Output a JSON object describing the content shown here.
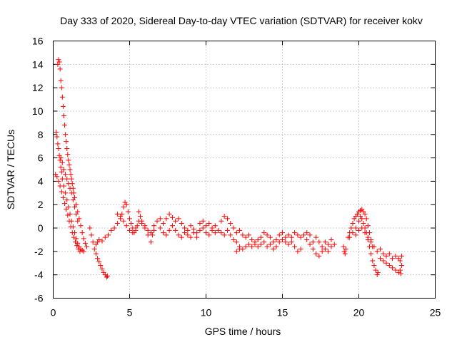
{
  "chart_data": {
    "type": "scatter",
    "title": "Day 333 of 2020, Sidereal Day-to-day VTEC variation (SDTVAR) for receiver kokv",
    "xlabel": "GPS time / hours",
    "ylabel": "SDTVAR / TECUs",
    "xlim": [
      0,
      25
    ],
    "ylim": [
      -6,
      16
    ],
    "xticks": [
      0,
      5,
      10,
      15,
      20,
      25
    ],
    "yticks": [
      -6,
      -4,
      -2,
      0,
      2,
      4,
      6,
      8,
      10,
      12,
      14,
      16
    ],
    "grid": true,
    "legend": "none",
    "marker": "+",
    "color": "#ff0000",
    "series": [
      {
        "name": "SDTVAR",
        "points": [
          [
            0.2,
            8.2
          ],
          [
            0.25,
            7.8
          ],
          [
            0.3,
            7.2
          ],
          [
            0.35,
            6.8
          ],
          [
            0.4,
            6.2
          ],
          [
            0.45,
            5.8
          ],
          [
            0.5,
            5.2
          ],
          [
            0.55,
            4.8
          ],
          [
            0.6,
            4.2
          ],
          [
            0.7,
            3.6
          ],
          [
            0.8,
            3.0
          ],
          [
            0.9,
            2.4
          ],
          [
            1.0,
            1.8
          ],
          [
            1.1,
            1.2
          ],
          [
            1.2,
            0.6
          ],
          [
            1.3,
            0.1
          ],
          [
            1.4,
            -0.4
          ],
          [
            1.5,
            -0.9
          ],
          [
            1.6,
            -1.3
          ],
          [
            1.7,
            -1.6
          ],
          [
            1.8,
            -1.8
          ],
          [
            1.9,
            -1.9
          ],
          [
            2.0,
            -2.0
          ],
          [
            0.15,
            4.6
          ],
          [
            0.25,
            4.4
          ],
          [
            0.35,
            4.0
          ],
          [
            0.45,
            3.6
          ],
          [
            0.55,
            3.1
          ],
          [
            0.65,
            2.6
          ],
          [
            0.75,
            2.1
          ],
          [
            0.85,
            1.6
          ],
          [
            0.95,
            1.1
          ],
          [
            1.05,
            0.6
          ],
          [
            1.15,
            0.1
          ],
          [
            1.25,
            -0.4
          ],
          [
            1.35,
            -0.8
          ],
          [
            1.45,
            -1.2
          ],
          [
            1.55,
            -1.5
          ],
          [
            1.65,
            -1.8
          ],
          [
            1.75,
            -2.0
          ],
          [
            0.3,
            14.0
          ],
          [
            0.35,
            14.4
          ],
          [
            0.4,
            14.2
          ],
          [
            0.45,
            13.6
          ],
          [
            0.5,
            12.6
          ],
          [
            0.55,
            12.0
          ],
          [
            0.6,
            11.2
          ],
          [
            0.65,
            10.4
          ],
          [
            0.7,
            9.6
          ],
          [
            0.75,
            8.8
          ],
          [
            0.8,
            8.0
          ],
          [
            0.85,
            7.4
          ],
          [
            0.9,
            6.8
          ],
          [
            0.95,
            6.3
          ],
          [
            1.0,
            5.8
          ],
          [
            1.05,
            5.4
          ],
          [
            1.1,
            5.0
          ],
          [
            1.15,
            4.6
          ],
          [
            1.2,
            4.2
          ],
          [
            1.25,
            3.8
          ],
          [
            1.3,
            3.4
          ],
          [
            1.35,
            3.0
          ],
          [
            1.4,
            2.6
          ],
          [
            1.5,
            2.0
          ],
          [
            1.6,
            1.4
          ],
          [
            1.7,
            0.8
          ],
          [
            1.8,
            0.2
          ],
          [
            1.9,
            -0.4
          ],
          [
            2.0,
            -0.9
          ],
          [
            2.1,
            -1.3
          ],
          [
            2.2,
            -1.6
          ],
          [
            0.5,
            6.0
          ],
          [
            0.6,
            5.6
          ],
          [
            0.7,
            5.0
          ],
          [
            0.8,
            4.6
          ],
          [
            0.9,
            4.2
          ],
          [
            1.0,
            3.8
          ],
          [
            1.1,
            3.4
          ],
          [
            1.2,
            3.0
          ],
          [
            1.3,
            2.4
          ],
          [
            1.4,
            1.8
          ],
          [
            1.5,
            1.2
          ],
          [
            1.6,
            0.6
          ],
          [
            2.4,
            0.0
          ],
          [
            2.5,
            -0.6
          ],
          [
            2.6,
            -1.2
          ],
          [
            2.7,
            -1.8
          ],
          [
            2.8,
            -2.2
          ],
          [
            2.9,
            -2.6
          ],
          [
            3.0,
            -2.9
          ],
          [
            3.1,
            -3.2
          ],
          [
            3.2,
            -3.5
          ],
          [
            3.3,
            -3.8
          ],
          [
            3.4,
            -4.0
          ],
          [
            3.5,
            -4.2
          ],
          [
            3.55,
            -4.1
          ],
          [
            2.8,
            -1.4
          ],
          [
            2.9,
            -1.2
          ],
          [
            3.0,
            -1.0
          ],
          [
            3.2,
            -1.1
          ],
          [
            3.4,
            -0.8
          ],
          [
            3.6,
            -0.6
          ],
          [
            3.8,
            -0.2
          ],
          [
            4.0,
            0.0
          ],
          [
            4.2,
            0.4
          ],
          [
            4.4,
            0.8
          ],
          [
            4.5,
            1.2
          ],
          [
            4.6,
            1.8
          ],
          [
            4.7,
            2.2
          ],
          [
            4.8,
            2.0
          ],
          [
            4.9,
            1.4
          ],
          [
            5.0,
            0.8
          ],
          [
            5.1,
            0.4
          ],
          [
            5.2,
            0.0
          ],
          [
            5.3,
            -0.4
          ],
          [
            5.4,
            -0.2
          ],
          [
            5.5,
            0.2
          ],
          [
            5.6,
            0.6
          ],
          [
            5.8,
            0.4
          ],
          [
            6.0,
            0.0
          ],
          [
            6.2,
            -0.6
          ],
          [
            6.4,
            -1.2
          ],
          [
            6.5,
            -0.6
          ],
          [
            6.6,
            -0.2
          ],
          [
            4.2,
            1.2
          ],
          [
            4.4,
            1.0
          ],
          [
            4.6,
            0.6
          ],
          [
            4.8,
            0.2
          ],
          [
            5.0,
            -0.2
          ],
          [
            5.2,
            -0.4
          ],
          [
            5.4,
            0.0
          ],
          [
            5.6,
            1.4
          ],
          [
            5.7,
            1.0
          ],
          [
            5.8,
            0.6
          ],
          [
            6.0,
            0.2
          ],
          [
            6.2,
            -0.2
          ],
          [
            6.4,
            -0.4
          ],
          [
            6.6,
            0.2
          ],
          [
            6.8,
            0.6
          ],
          [
            7.0,
            0.8
          ],
          [
            7.2,
            0.4
          ],
          [
            7.4,
            0.8
          ],
          [
            7.6,
            1.2
          ],
          [
            7.8,
            0.9
          ],
          [
            8.0,
            0.6
          ],
          [
            8.2,
            0.8
          ],
          [
            8.4,
            0.4
          ],
          [
            8.6,
            0.0
          ],
          [
            8.8,
            -0.2
          ],
          [
            9.0,
            0.2
          ],
          [
            9.2,
            -0.1
          ],
          [
            9.4,
            -0.4
          ],
          [
            9.6,
            -0.2
          ],
          [
            9.8,
            0.0
          ],
          [
            10.0,
            -0.4
          ],
          [
            10.2,
            -0.6
          ],
          [
            10.4,
            -0.2
          ],
          [
            10.6,
            0.2
          ],
          [
            7.0,
            0.0
          ],
          [
            7.2,
            -0.4
          ],
          [
            7.4,
            -0.6
          ],
          [
            7.6,
            -0.2
          ],
          [
            7.8,
            0.2
          ],
          [
            8.0,
            -0.2
          ],
          [
            8.2,
            -0.6
          ],
          [
            8.4,
            -0.8
          ],
          [
            8.6,
            -0.4
          ],
          [
            8.8,
            -0.6
          ],
          [
            9.0,
            -0.8
          ],
          [
            9.2,
            -0.4
          ],
          [
            9.4,
            -0.8
          ],
          [
            9.6,
            0.4
          ],
          [
            9.8,
            0.6
          ],
          [
            10.0,
            0.2
          ],
          [
            10.2,
            0.4
          ],
          [
            10.4,
            0.0
          ],
          [
            10.6,
            -0.4
          ],
          [
            10.8,
            -0.2
          ],
          [
            11.0,
            0.6
          ],
          [
            11.2,
            1.0
          ],
          [
            11.4,
            0.8
          ],
          [
            11.6,
            0.4
          ],
          [
            11.8,
            0.0
          ],
          [
            12.0,
            -0.4
          ],
          [
            12.2,
            -0.2
          ],
          [
            12.4,
            -0.6
          ],
          [
            12.6,
            -0.8
          ],
          [
            12.8,
            -0.6
          ],
          [
            13.0,
            -1.0
          ],
          [
            13.2,
            -1.2
          ],
          [
            13.4,
            -1.0
          ],
          [
            11.0,
            -0.4
          ],
          [
            11.2,
            -0.6
          ],
          [
            11.4,
            -0.2
          ],
          [
            11.6,
            -0.6
          ],
          [
            11.8,
            -1.0
          ],
          [
            12.0,
            -1.2
          ],
          [
            12.2,
            -1.6
          ],
          [
            12.4,
            -1.8
          ],
          [
            12.6,
            -1.6
          ],
          [
            12.8,
            -1.4
          ],
          [
            13.0,
            -1.6
          ],
          [
            13.2,
            -1.4
          ],
          [
            12.0,
            -2.0
          ],
          [
            12.2,
            -1.8
          ],
          [
            13.6,
            -0.8
          ],
          [
            13.8,
            -0.4
          ],
          [
            14.0,
            -0.6
          ],
          [
            14.2,
            -0.8
          ],
          [
            14.4,
            -1.2
          ],
          [
            14.6,
            -1.0
          ],
          [
            14.8,
            -0.6
          ],
          [
            15.0,
            -0.4
          ],
          [
            15.2,
            -0.8
          ],
          [
            15.4,
            -0.6
          ],
          [
            15.6,
            -0.8
          ],
          [
            15.8,
            -0.4
          ],
          [
            16.0,
            -0.6
          ],
          [
            16.2,
            -0.8
          ],
          [
            13.4,
            -1.6
          ],
          [
            13.6,
            -1.4
          ],
          [
            13.8,
            -1.2
          ],
          [
            14.0,
            -1.6
          ],
          [
            14.2,
            -1.4
          ],
          [
            14.4,
            -1.8
          ],
          [
            14.6,
            -1.6
          ],
          [
            14.8,
            -1.2
          ],
          [
            15.0,
            -1.0
          ],
          [
            15.2,
            -1.2
          ],
          [
            15.4,
            -1.4
          ],
          [
            15.6,
            -1.2
          ],
          [
            15.8,
            -1.6
          ],
          [
            16.0,
            -2.0
          ],
          [
            16.2,
            -1.8
          ],
          [
            16.4,
            -0.6
          ],
          [
            16.6,
            -1.0
          ],
          [
            16.8,
            -1.4
          ],
          [
            17.0,
            -1.2
          ],
          [
            17.2,
            -0.8
          ],
          [
            17.4,
            -1.2
          ],
          [
            17.6,
            -1.6
          ],
          [
            17.8,
            -1.2
          ],
          [
            18.0,
            -1.4
          ],
          [
            18.2,
            -1.0
          ],
          [
            18.4,
            -1.4
          ],
          [
            16.6,
            -0.4
          ],
          [
            16.8,
            -0.6
          ],
          [
            17.0,
            -1.8
          ],
          [
            17.2,
            -2.2
          ],
          [
            17.4,
            -2.4
          ],
          [
            17.6,
            -2.0
          ],
          [
            17.8,
            -1.8
          ],
          [
            18.0,
            -2.0
          ],
          [
            18.2,
            -1.6
          ],
          [
            19.0,
            -1.6
          ],
          [
            19.05,
            -2.0
          ],
          [
            19.1,
            -2.2
          ],
          [
            19.15,
            -1.8
          ],
          [
            19.3,
            -0.8
          ],
          [
            19.4,
            -0.4
          ],
          [
            19.5,
            0.0
          ],
          [
            19.6,
            0.4
          ],
          [
            19.7,
            0.8
          ],
          [
            19.8,
            1.0
          ],
          [
            19.9,
            1.2
          ],
          [
            20.0,
            1.4
          ],
          [
            20.1,
            1.5
          ],
          [
            20.2,
            1.6
          ],
          [
            20.3,
            1.4
          ],
          [
            20.4,
            1.2
          ],
          [
            20.5,
            0.8
          ],
          [
            20.6,
            0.2
          ],
          [
            20.7,
            -0.4
          ],
          [
            20.8,
            -1.0
          ],
          [
            20.9,
            -1.6
          ],
          [
            19.4,
            -0.8
          ],
          [
            19.6,
            -0.4
          ],
          [
            19.8,
            0.0
          ],
          [
            20.0,
            0.6
          ],
          [
            20.1,
            1.0
          ],
          [
            20.2,
            0.8
          ],
          [
            20.3,
            0.4
          ],
          [
            20.4,
            0.0
          ],
          [
            20.5,
            -0.4
          ],
          [
            20.6,
            -1.0
          ],
          [
            20.7,
            -1.6
          ],
          [
            20.8,
            -2.2
          ],
          [
            20.9,
            -2.8
          ],
          [
            21.0,
            -3.2
          ],
          [
            21.1,
            -3.6
          ],
          [
            21.2,
            -4.0
          ],
          [
            21.25,
            -3.8
          ],
          [
            19.8,
            -0.6
          ],
          [
            20.0,
            -0.2
          ],
          [
            20.2,
            0.0
          ],
          [
            20.4,
            -0.4
          ],
          [
            20.6,
            -0.8
          ],
          [
            20.8,
            -1.2
          ],
          [
            21.0,
            -1.6
          ],
          [
            21.2,
            -2.0
          ],
          [
            21.4,
            -1.8
          ],
          [
            21.6,
            -2.2
          ],
          [
            21.8,
            -2.4
          ],
          [
            22.0,
            -2.2
          ],
          [
            21.4,
            -2.6
          ],
          [
            21.6,
            -2.8
          ],
          [
            21.8,
            -3.0
          ],
          [
            22.0,
            -3.2
          ],
          [
            22.2,
            -3.4
          ],
          [
            22.4,
            -3.6
          ],
          [
            22.6,
            -3.8
          ],
          [
            22.7,
            -3.6
          ],
          [
            22.8,
            -3.2
          ],
          [
            22.2,
            -2.6
          ],
          [
            22.4,
            -2.4
          ],
          [
            22.6,
            -2.6
          ],
          [
            22.7,
            -2.8
          ],
          [
            22.8,
            -2.4
          ],
          [
            22.75,
            -3.9
          ]
        ]
      }
    ]
  }
}
